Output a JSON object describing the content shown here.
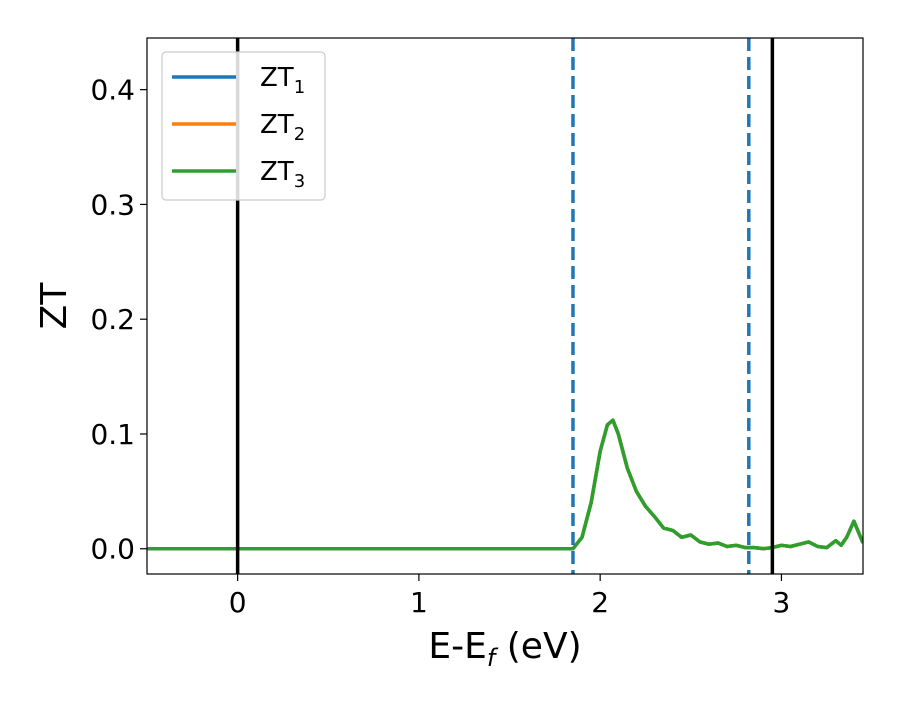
{
  "chart_data": {
    "type": "line",
    "xlabel": {
      "main": "E-E",
      "sub": "f",
      "unit": " (eV)"
    },
    "ylabel": "ZT",
    "xlim": [
      -0.5,
      3.45
    ],
    "ylim": [
      -0.022,
      0.445
    ],
    "xticks": [
      0,
      1,
      2,
      3
    ],
    "xtick_labels": [
      "0",
      "1",
      "2",
      "3"
    ],
    "yticks": [
      0.0,
      0.1,
      0.2,
      0.3,
      0.4
    ],
    "ytick_labels": [
      "0.0",
      "0.1",
      "0.2",
      "0.3",
      "0.4"
    ],
    "grid": false,
    "legend_position": "top-left",
    "series": [
      {
        "name": "ZT",
        "sub": "1",
        "color": "#1f77b4",
        "x": [
          -0.5,
          1.85,
          1.9,
          1.95,
          2.0,
          2.04,
          2.07,
          2.1,
          2.15,
          2.2,
          2.25,
          2.3,
          2.35,
          2.4,
          2.45,
          2.5,
          2.55,
          2.6,
          2.65,
          2.7,
          2.75,
          2.8,
          2.85,
          2.9,
          2.95,
          3.0,
          3.05,
          3.1,
          3.15,
          3.2,
          3.25,
          3.3,
          3.33,
          3.36,
          3.4,
          3.45
        ],
        "y": [
          0.0,
          0.0,
          0.01,
          0.04,
          0.085,
          0.108,
          0.112,
          0.1,
          0.07,
          0.05,
          0.037,
          0.028,
          0.018,
          0.016,
          0.01,
          0.012,
          0.006,
          0.004,
          0.005,
          0.002,
          0.003,
          0.001,
          0.001,
          0.0,
          0.001,
          0.003,
          0.002,
          0.004,
          0.006,
          0.002,
          0.001,
          0.007,
          0.003,
          0.01,
          0.024,
          0.005
        ]
      },
      {
        "name": "ZT",
        "sub": "2",
        "color": "#ff7f0e",
        "x": [
          -0.5,
          1.85,
          1.9,
          1.95,
          2.0,
          2.04,
          2.07,
          2.1,
          2.15,
          2.2,
          2.25,
          2.3,
          2.35,
          2.4,
          2.45,
          2.5,
          2.55,
          2.6,
          2.65,
          2.7,
          2.75,
          2.8,
          2.85,
          2.9,
          2.95,
          3.0,
          3.05,
          3.1,
          3.15,
          3.2,
          3.25,
          3.3,
          3.33,
          3.36,
          3.4,
          3.45
        ],
        "y": [
          0.0,
          0.0,
          0.01,
          0.04,
          0.085,
          0.108,
          0.112,
          0.1,
          0.07,
          0.05,
          0.037,
          0.028,
          0.018,
          0.016,
          0.01,
          0.012,
          0.006,
          0.004,
          0.005,
          0.002,
          0.003,
          0.001,
          0.001,
          0.0,
          0.001,
          0.003,
          0.002,
          0.004,
          0.006,
          0.002,
          0.001,
          0.007,
          0.003,
          0.01,
          0.024,
          0.005
        ]
      },
      {
        "name": "ZT",
        "sub": "3",
        "color": "#2ca02c",
        "x": [
          -0.5,
          1.85,
          1.9,
          1.95,
          2.0,
          2.04,
          2.07,
          2.1,
          2.15,
          2.2,
          2.25,
          2.3,
          2.35,
          2.4,
          2.45,
          2.5,
          2.55,
          2.6,
          2.65,
          2.7,
          2.75,
          2.8,
          2.85,
          2.9,
          2.95,
          3.0,
          3.05,
          3.1,
          3.15,
          3.2,
          3.25,
          3.3,
          3.33,
          3.36,
          3.4,
          3.45
        ],
        "y": [
          0.0,
          0.0,
          0.01,
          0.04,
          0.085,
          0.108,
          0.112,
          0.1,
          0.07,
          0.05,
          0.037,
          0.028,
          0.018,
          0.016,
          0.01,
          0.012,
          0.006,
          0.004,
          0.005,
          0.002,
          0.003,
          0.001,
          0.001,
          0.0,
          0.001,
          0.003,
          0.002,
          0.004,
          0.006,
          0.002,
          0.001,
          0.007,
          0.003,
          0.01,
          0.024,
          0.005
        ]
      }
    ],
    "vlines": [
      {
        "x": 0.0,
        "style": "solid",
        "color": "#000000"
      },
      {
        "x": 2.95,
        "style": "solid",
        "color": "#000000"
      },
      {
        "x": 1.85,
        "style": "dashed",
        "color": "#1f77b4"
      },
      {
        "x": 2.82,
        "style": "dashed",
        "color": "#1f77b4"
      }
    ]
  }
}
